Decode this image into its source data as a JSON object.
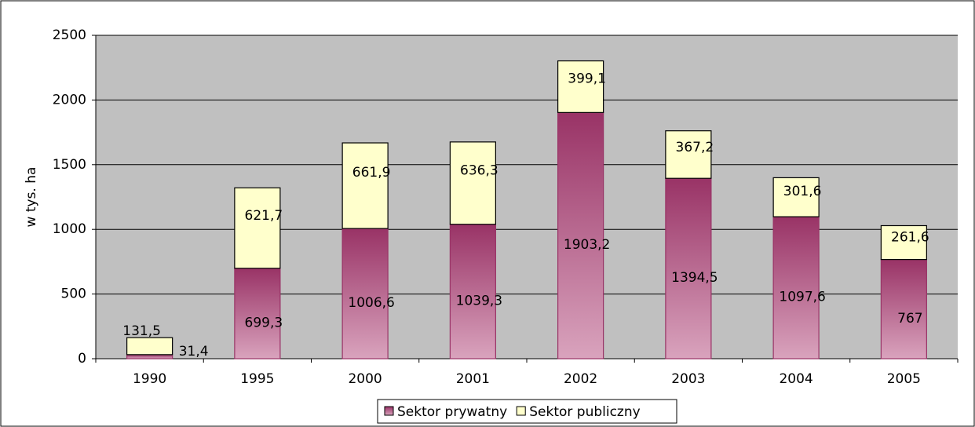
{
  "chart_data": {
    "type": "stacked-bar",
    "y_label": "w tys. ha",
    "categories": [
      "1990",
      "1995",
      "2000",
      "2001",
      "2002",
      "2003",
      "2004",
      "2005"
    ],
    "series": [
      {
        "name": "Sektor prywatny",
        "color": "#993366",
        "values": [
          31.4,
          699.3,
          1006.6,
          1039.3,
          1903.2,
          1394.5,
          1097.6,
          767
        ],
        "value_labels": [
          "31,4",
          "699,3",
          "1006,6",
          "1039,3",
          "1903,2",
          "1394,5",
          "1097,6",
          "767"
        ]
      },
      {
        "name": "Sektor publiczny",
        "color": "#ffffcc",
        "values": [
          131.5,
          621.7,
          661.9,
          636.3,
          399.1,
          367.2,
          301.6,
          261.6
        ],
        "value_labels": [
          "131,5",
          "621,7",
          "661,9",
          "636,3",
          "399,1",
          "367,2",
          "301,6",
          "261,6"
        ]
      }
    ],
    "ylim": [
      0,
      2500
    ],
    "yticks": [
      0,
      500,
      1000,
      1500,
      2000,
      2500
    ],
    "grid": true,
    "legend": "bottom"
  }
}
